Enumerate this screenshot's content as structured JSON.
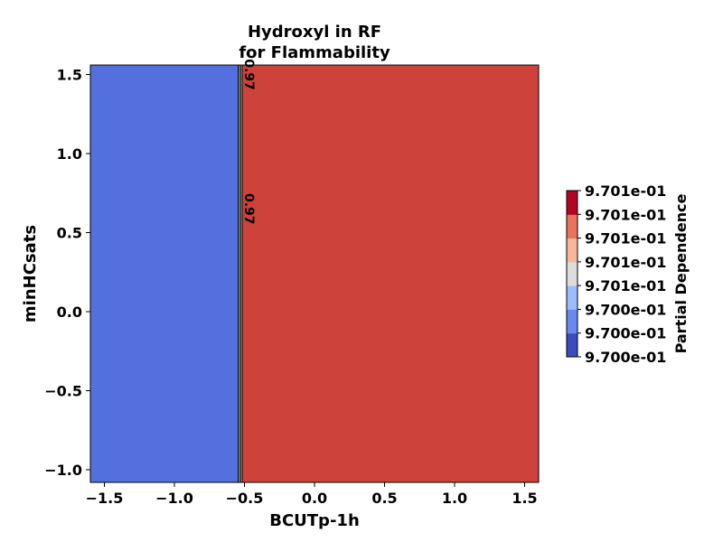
{
  "chart_data": {
    "type": "heatmap",
    "title_lines": [
      "Hydroxyl in RF",
      "for Flammability"
    ],
    "xlabel": "BCUTp-1h",
    "ylabel": "minHCsats",
    "xlim": [
      -1.6,
      1.6
    ],
    "ylim": [
      -1.08,
      1.56
    ],
    "x_ticks": [
      -1.5,
      -1.0,
      -0.5,
      0.0,
      0.5,
      1.0,
      1.5
    ],
    "x_tick_labels": [
      "−1.5",
      "−1.0",
      "−0.5",
      "0.0",
      "0.5",
      "1.0",
      "1.5"
    ],
    "y_ticks": [
      1.5,
      1.0,
      0.5,
      0.0,
      -0.5,
      -1.0
    ],
    "y_tick_labels": [
      "1.5",
      "1.0",
      "0.5",
      "0.0",
      "−0.5",
      "−1.0"
    ],
    "regions": [
      {
        "x_from": -1.6,
        "x_to": -0.545,
        "color": "#5470de",
        "level": "low"
      },
      {
        "x_from": -0.545,
        "x_to": -0.535,
        "color": "#9ab9ff"
      },
      {
        "x_from": -0.535,
        "x_to": -0.525,
        "color": "#dddddd"
      },
      {
        "x_from": -0.525,
        "x_to": -0.515,
        "color": "#f7b89c"
      },
      {
        "x_from": -0.515,
        "x_to": 1.6,
        "color": "#cd423b",
        "level": "high"
      }
    ],
    "contour_lines_x": [
      -0.545,
      -0.535,
      -0.525,
      -0.515
    ],
    "contour_labels": [
      {
        "text": "0.97",
        "x": -0.53,
        "y": 1.5
      },
      {
        "text": "0.97",
        "x": -0.53,
        "y": 0.65
      }
    ],
    "colorbar": {
      "label": "Partial Dependence",
      "tick_labels": [
        "9.701e-01",
        "9.701e-01",
        "9.701e-01",
        "9.701e-01",
        "9.701e-01",
        "9.700e-01",
        "9.700e-01",
        "9.700e-01"
      ],
      "colors": [
        "#3b4cc0",
        "#6889ee",
        "#9bbcff",
        "#dddddd",
        "#f6b89b",
        "#e7745b",
        "#b40426"
      ]
    },
    "grid": false
  }
}
